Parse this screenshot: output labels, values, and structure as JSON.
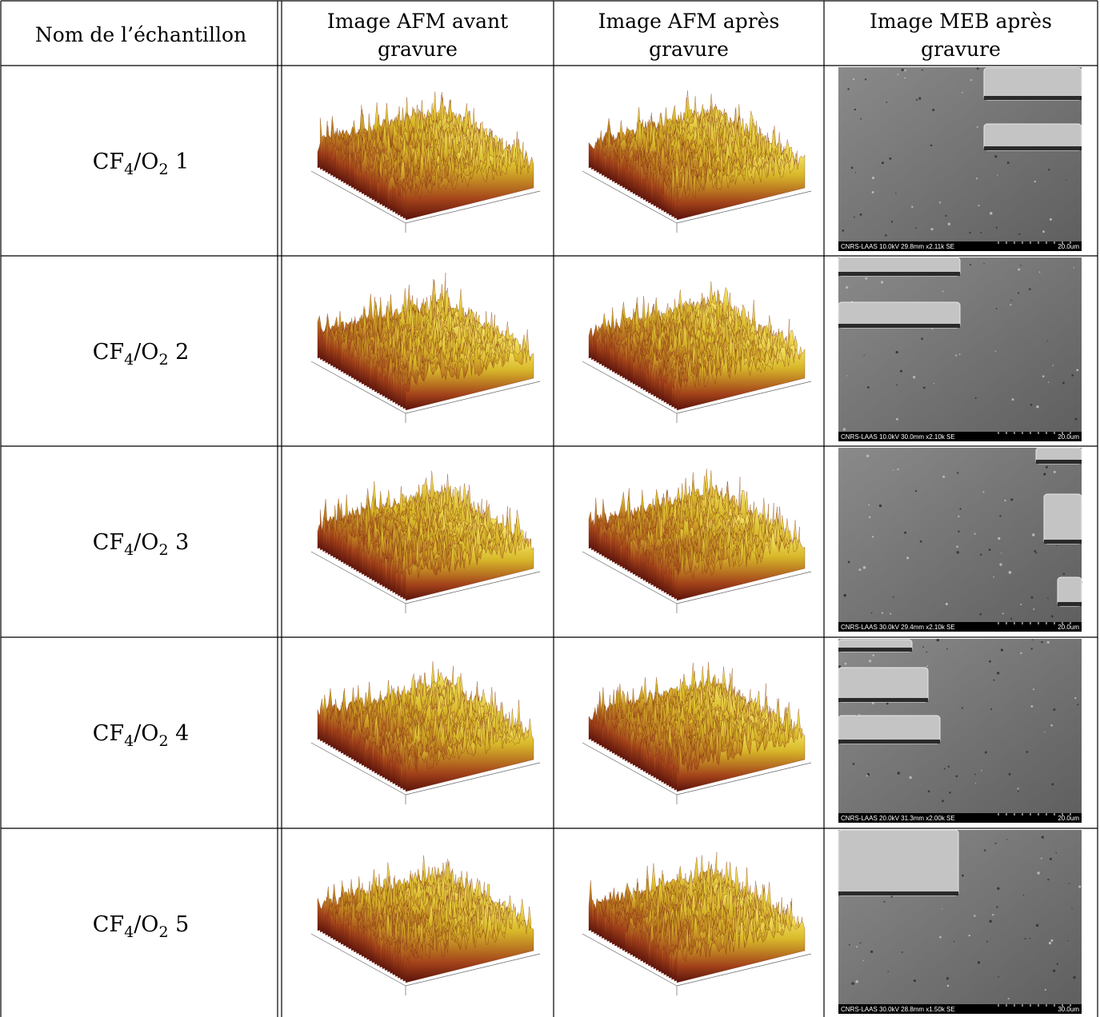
{
  "table": {
    "header": [
      [
        "Nom de l’échantillon"
      ],
      [
        "Image AFM avant",
        "gravure"
      ],
      [
        "Image AFM après",
        "gravure"
      ],
      [
        "Image MEB après",
        "gravure"
      ]
    ],
    "rows": [
      {
        "sample": [
          "CF",
          "4",
          "/O",
          "2",
          " 1"
        ],
        "meb_caption": "CNRS-LAAS 10.0kV 29.8mm x2.11k SE",
        "meb_scale": "20.0um"
      },
      {
        "sample": [
          "CF",
          "4",
          "/O",
          "2",
          " 2"
        ],
        "meb_caption": "CNRS-LAAS 10.0kV 30.0mm x2.10k SE",
        "meb_scale": "20.0um"
      },
      {
        "sample": [
          "CF",
          "4",
          "/O",
          "2",
          " 3"
        ],
        "meb_caption": "CNRS-LAAS 30.0kV 29.4mm x2.10k SE",
        "meb_scale": "20.0um"
      },
      {
        "sample": [
          "CF",
          "4",
          "/O",
          "2",
          " 4"
        ],
        "meb_caption": "CNRS-LAAS 20.0kV 31.3mm x2.00k SE",
        "meb_scale": "20.0um"
      },
      {
        "sample": [
          "CF",
          "4",
          "/O",
          "2",
          " 5"
        ],
        "meb_caption": "CNRS-LAAS 30.0kV 28.8mm x1.50k SE",
        "meb_scale": "30.0um"
      }
    ]
  }
}
